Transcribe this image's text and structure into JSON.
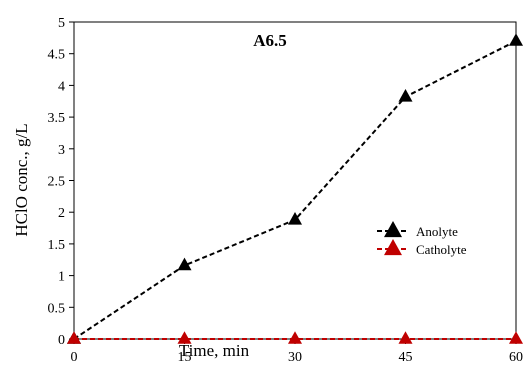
{
  "chart_data": {
    "type": "line",
    "title": "A6.5",
    "xlabel": "Time, min",
    "ylabel": "HClO conc., g/L",
    "x": [
      0,
      15,
      30,
      45,
      60
    ],
    "xlim": [
      0,
      60
    ],
    "ylim": [
      0,
      5
    ],
    "xticks": [
      0,
      15,
      30,
      45,
      60
    ],
    "yticks": [
      0,
      0.5,
      1,
      1.5,
      2,
      2.5,
      3,
      3.5,
      4,
      4.5,
      5
    ],
    "grid": false,
    "legend_position": "right",
    "series": [
      {
        "name": "Anolyte",
        "values": [
          0,
          1.16,
          1.88,
          3.82,
          4.7
        ],
        "color": "#000000",
        "marker": "triangle",
        "line_style": "dashed"
      },
      {
        "name": "Catholyte",
        "values": [
          0,
          0,
          0,
          0,
          0
        ],
        "color": "#c00000",
        "marker": "triangle",
        "line_style": "dashed"
      }
    ]
  }
}
